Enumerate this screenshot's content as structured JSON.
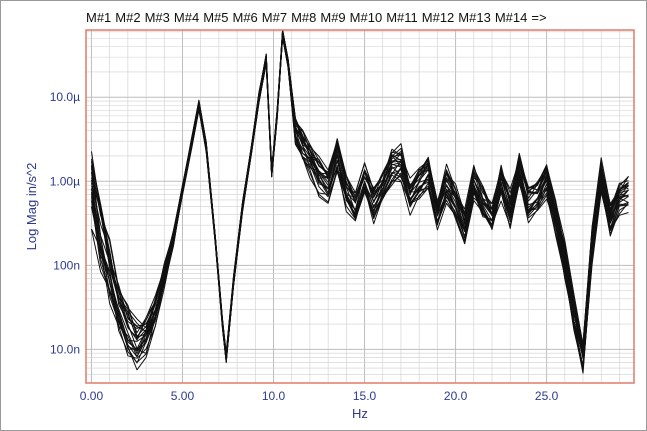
{
  "chart_data": {
    "type": "line",
    "legend": {
      "entries": [
        "M#1",
        "M#2",
        "M#3",
        "M#4",
        "M#5",
        "M#6",
        "M#7",
        "M#8",
        "M#9",
        "M#10",
        "M#11",
        "M#12",
        "M#13",
        "M#14"
      ],
      "more": "=>",
      "placement": "top"
    },
    "xlabel": "Hz",
    "ylabel": "Log Mag in/s^2",
    "xlim": [
      -0.3,
      29.8
    ],
    "ylim_log10": [
      -8.4,
      -4.2
    ],
    "y_scale": "log",
    "x_ticks": [
      {
        "value": 0,
        "label": "0.00"
      },
      {
        "value": 5,
        "label": "5.00"
      },
      {
        "value": 10,
        "label": "10.0"
      },
      {
        "value": 15,
        "label": "15.0"
      },
      {
        "value": 20,
        "label": "20.0"
      },
      {
        "value": 25,
        "label": "25.0"
      }
    ],
    "y_ticks": [
      {
        "log10": -5,
        "label": "10.0µ"
      },
      {
        "log10": -6,
        "label": "1.00µ"
      },
      {
        "log10": -7,
        "label": "100n"
      },
      {
        "log10": -8,
        "label": "10.0n"
      }
    ],
    "grid": true,
    "colors": {
      "series": "#111111",
      "plot_border": "#e07a6a",
      "grid": "#cfcfcf",
      "tick_label": "#2e3a8c"
    },
    "base_curve": {
      "x": [
        0.0,
        0.5,
        1.0,
        1.5,
        2.0,
        2.5,
        3.0,
        3.5,
        4.0,
        4.5,
        5.0,
        5.5,
        5.9,
        6.3,
        6.8,
        7.2,
        7.4,
        7.8,
        8.3,
        8.8,
        9.2,
        9.6,
        9.9,
        10.2,
        10.5,
        10.8,
        11.2,
        11.6,
        12.0,
        12.5,
        13.0,
        13.5,
        14.0,
        14.5,
        15.0,
        15.5,
        16.0,
        16.5,
        17.0,
        17.5,
        18.0,
        18.5,
        19.0,
        19.5,
        20.0,
        20.5,
        21.0,
        21.5,
        22.0,
        22.5,
        23.0,
        23.5,
        24.0,
        24.5,
        25.0,
        25.5,
        26.0,
        26.5,
        27.0,
        27.5,
        28.0,
        28.5,
        29.0,
        29.5
      ],
      "log10_y": [
        -6.1,
        -6.6,
        -7.1,
        -7.5,
        -7.8,
        -7.95,
        -7.85,
        -7.55,
        -7.15,
        -6.7,
        -6.1,
        -5.55,
        -5.1,
        -5.6,
        -6.7,
        -7.7,
        -8.1,
        -7.2,
        -6.3,
        -5.6,
        -5.0,
        -4.55,
        -5.9,
        -5.2,
        -4.25,
        -4.6,
        -5.4,
        -5.6,
        -5.75,
        -5.95,
        -6.05,
        -5.7,
        -6.15,
        -6.35,
        -6.0,
        -6.3,
        -6.1,
        -5.85,
        -5.8,
        -6.2,
        -6.05,
        -5.9,
        -6.4,
        -6.05,
        -6.25,
        -6.55,
        -6.05,
        -6.3,
        -6.45,
        -6.0,
        -6.35,
        -5.85,
        -6.3,
        -6.2,
        -6.0,
        -6.45,
        -6.95,
        -7.6,
        -8.1,
        -6.8,
        -5.95,
        -6.45,
        -6.2,
        -6.15
      ]
    },
    "series_count": 24
  }
}
